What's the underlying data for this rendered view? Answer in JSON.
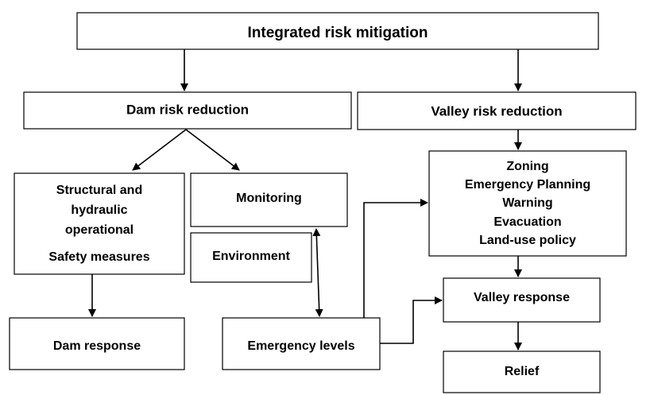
{
  "nodes": [
    {
      "lines": [
        "Integrated risk mitigation"
      ]
    },
    {
      "lines": [
        "Dam risk reduction"
      ]
    },
    {
      "lines": [
        "Valley risk reduction"
      ]
    },
    {
      "lines": [
        "Structural and",
        "hydraulic",
        "operational",
        "Safety measures"
      ]
    },
    {
      "lines": [
        "Monitoring"
      ]
    },
    {
      "lines": [
        "Environment"
      ]
    },
    {
      "lines": [
        "Dam response"
      ]
    },
    {
      "lines": [
        "Emergency levels"
      ]
    },
    {
      "lines": [
        "Zoning",
        "Emergency Planning",
        "Warning",
        "Evacuation",
        "Land-use policy"
      ]
    },
    {
      "lines": [
        "Valley response"
      ]
    },
    {
      "lines": [
        "Relief"
      ]
    }
  ]
}
